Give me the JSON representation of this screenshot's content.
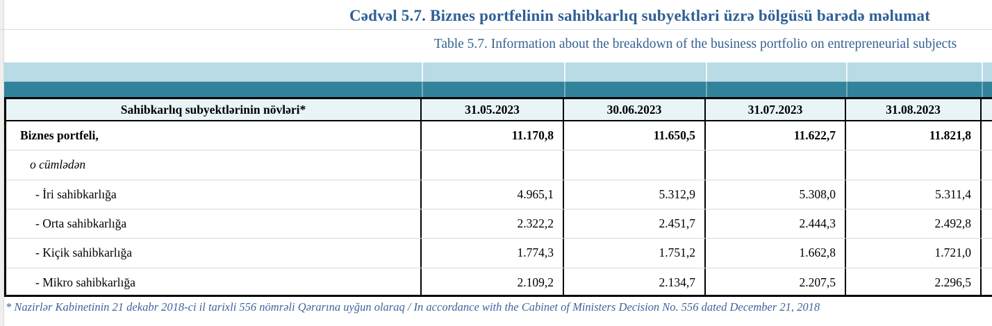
{
  "titles": {
    "az": "Cədvəl 5.7. Biznes portfelinin sahibkarlıq subyektləri üzrə bölgüsü barədə məlumat",
    "en": "Table 5.7. Information about the breakdown of the business portfolio on entrepreneurial subjects"
  },
  "table": {
    "header": {
      "label_column": "Sahibkarlıq subyektlərinin növləri*",
      "dates": [
        "31.05.2023",
        "30.06.2023",
        "31.07.2023",
        "31.08.2023"
      ]
    },
    "rows": [
      {
        "label": "Biznes portfeli,",
        "emphasis": "bold",
        "values": [
          "11.170,8",
          "11.650,5",
          "11.622,7",
          "11.821,8"
        ]
      },
      {
        "label": "o cümlədən",
        "emphasis": "italic",
        "values": [
          "",
          "",
          "",
          ""
        ]
      },
      {
        "label": "- İri sahibkarlığa",
        "emphasis": "normal",
        "values": [
          "4.965,1",
          "5.312,9",
          "5.308,0",
          "5.311,4"
        ]
      },
      {
        "label": "- Orta sahibkarlığa",
        "emphasis": "normal",
        "values": [
          "2.322,2",
          "2.451,7",
          "2.444,3",
          "2.492,8"
        ]
      },
      {
        "label": "- Kiçik sahibkarlığa",
        "emphasis": "normal",
        "values": [
          "1.774,3",
          "1.751,2",
          "1.662,8",
          "1.721,0"
        ]
      },
      {
        "label": "- Mikro sahibkarlığa",
        "emphasis": "normal",
        "values": [
          "2.109,2",
          "2.134,7",
          "2.207,5",
          "2.296,5"
        ]
      }
    ]
  },
  "footnote": "* Nazirlər Kabinetinin 21 dekabr 2018-ci il tarixli 556 nömrəli Qərarına uyğun olaraq / In accordance with the Cabinet of Ministers Decision No. 556 dated December 21, 2018",
  "colors": {
    "band_teal": "#30839a",
    "band_light_blue": "#b8dbe6",
    "header_bg": "#e9f4f6",
    "title_blue": "#2f5f96",
    "footnote_blue": "#3e649f"
  }
}
